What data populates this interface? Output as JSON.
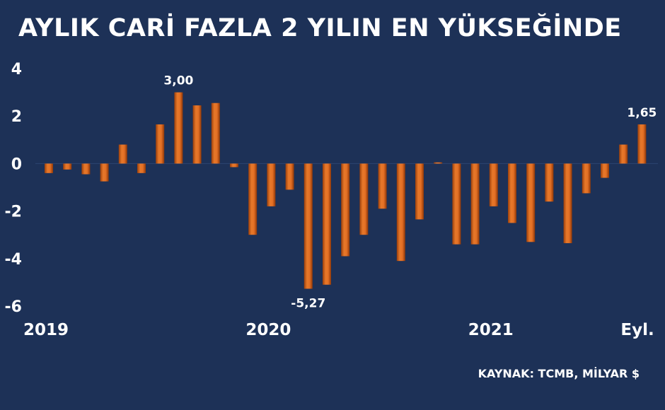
{
  "header": {
    "title": "AYLIK CARİ FAZLA 2 YILIN EN YÜKSEĞİNDE"
  },
  "footer": {
    "source": "KAYNAK: TCMB, MİLYAR $"
  },
  "colors": {
    "background": "#1d3157",
    "bar": "#d4641c",
    "text": "#ffffff"
  },
  "chart_data": {
    "type": "bar",
    "title": "AYLIK CARİ FAZLA 2 YILIN EN YÜKSEĞİNDE",
    "xlabel": "",
    "ylabel": "",
    "ylim": [
      -6,
      4
    ],
    "yticks": [
      4,
      2,
      0,
      -2,
      -4,
      -6
    ],
    "ytick_labels": [
      "4",
      "2",
      "0",
      "-2",
      "-4",
      "-6"
    ],
    "grid": false,
    "legend": "none",
    "x_labels": [
      {
        "text": "2019",
        "at_index": 0
      },
      {
        "text": "2020",
        "at_index": 12
      },
      {
        "text": "2021",
        "at_index": 24
      },
      {
        "text": "Eyl.",
        "at_index": 32
      }
    ],
    "values": [
      -0.4,
      -0.25,
      -0.45,
      -0.75,
      0.8,
      -0.4,
      1.65,
      3.0,
      2.45,
      2.55,
      -0.15,
      -3.0,
      -1.8,
      -1.1,
      -5.27,
      -5.1,
      -3.9,
      -3.0,
      -1.9,
      -4.1,
      -2.35,
      0.05,
      -3.4,
      -3.4,
      -1.8,
      -2.5,
      -3.3,
      -1.6,
      -3.35,
      -1.25,
      -0.6,
      0.8,
      1.65
    ],
    "data_labels": [
      {
        "index": 7,
        "text": "3,00"
      },
      {
        "index": 14,
        "text": "-5,27"
      },
      {
        "index": 32,
        "text": "1,65"
      }
    ]
  }
}
